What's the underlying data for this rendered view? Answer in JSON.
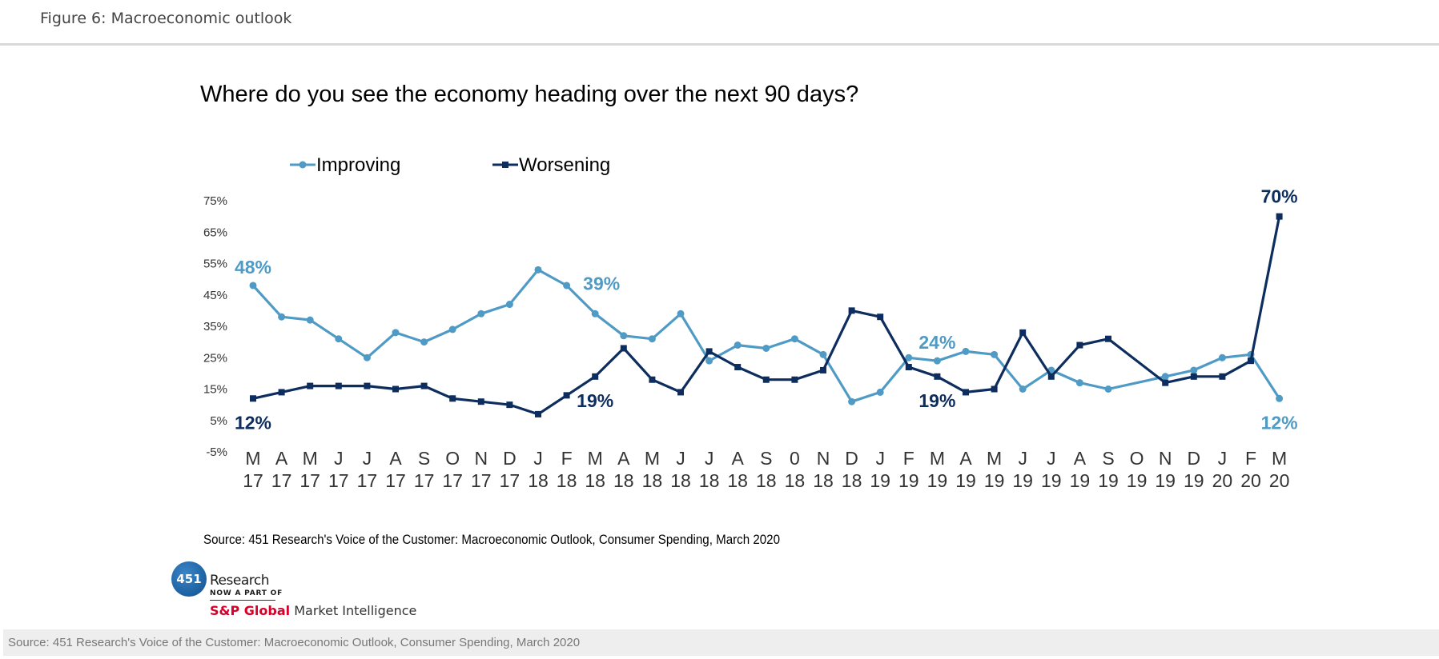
{
  "figure_title": "Figure 6: Macroeconomic outlook",
  "chart_data": {
    "type": "line",
    "title": "Where do you see the economy heading over the next 90 days?",
    "xlabel": "",
    "ylabel": "",
    "ylim": [
      -5,
      75
    ],
    "yticks": [
      "75%",
      "65%",
      "55%",
      "45%",
      "35%",
      "25%",
      "15%",
      "5%",
      "-5%"
    ],
    "ytick_values": [
      75,
      65,
      55,
      45,
      35,
      25,
      15,
      5,
      -5
    ],
    "grid": false,
    "legend_position": "top",
    "categories": [
      {
        "month": "M",
        "year": "17"
      },
      {
        "month": "A",
        "year": "17"
      },
      {
        "month": "M",
        "year": "17"
      },
      {
        "month": "J",
        "year": "17"
      },
      {
        "month": "J",
        "year": "17"
      },
      {
        "month": "A",
        "year": "17"
      },
      {
        "month": "S",
        "year": "17"
      },
      {
        "month": "O",
        "year": "17"
      },
      {
        "month": "N",
        "year": "17"
      },
      {
        "month": "D",
        "year": "17"
      },
      {
        "month": "J",
        "year": "18"
      },
      {
        "month": "F",
        "year": "18"
      },
      {
        "month": "M",
        "year": "18"
      },
      {
        "month": "A",
        "year": "18"
      },
      {
        "month": "M",
        "year": "18"
      },
      {
        "month": "J",
        "year": "18"
      },
      {
        "month": "J",
        "year": "18"
      },
      {
        "month": "A",
        "year": "18"
      },
      {
        "month": "S",
        "year": "18"
      },
      {
        "month": "0",
        "year": "18"
      },
      {
        "month": "N",
        "year": "18"
      },
      {
        "month": "D",
        "year": "18"
      },
      {
        "month": "J",
        "year": "19"
      },
      {
        "month": "F",
        "year": "19"
      },
      {
        "month": "M",
        "year": "19"
      },
      {
        "month": "A",
        "year": "19"
      },
      {
        "month": "M",
        "year": "19"
      },
      {
        "month": "J",
        "year": "19"
      },
      {
        "month": "J",
        "year": "19"
      },
      {
        "month": "A",
        "year": "19"
      },
      {
        "month": "S",
        "year": "19"
      },
      {
        "month": "O",
        "year": "19"
      },
      {
        "month": "N",
        "year": "19"
      },
      {
        "month": "D",
        "year": "19"
      },
      {
        "month": "J",
        "year": "20"
      },
      {
        "month": "F",
        "year": "20"
      },
      {
        "month": "M",
        "year": "20"
      }
    ],
    "series": [
      {
        "name": "Improving",
        "color": "#4f9bc6",
        "marker": "circle",
        "values": [
          48,
          38,
          37,
          31,
          25,
          33,
          30,
          34,
          39,
          42,
          53,
          48,
          39,
          32,
          31,
          39,
          24,
          29,
          28,
          31,
          26,
          11,
          14,
          25,
          24,
          27,
          26,
          15,
          21,
          17,
          15,
          null,
          19,
          21,
          25,
          26,
          12
        ]
      },
      {
        "name": "Worsening",
        "color": "#0d2d5e",
        "marker": "square",
        "values": [
          12,
          14,
          16,
          16,
          16,
          15,
          16,
          12,
          11,
          10,
          7,
          13,
          19,
          28,
          18,
          14,
          27,
          22,
          18,
          18,
          21,
          40,
          38,
          22,
          19,
          14,
          15,
          33,
          19,
          29,
          31,
          null,
          17,
          19,
          19,
          24,
          70
        ]
      }
    ],
    "annotations": [
      {
        "text": "48%",
        "series": "Improving",
        "index": 0,
        "placement": "above"
      },
      {
        "text": "39%",
        "series": "Improving",
        "index": 12,
        "placement": "above"
      },
      {
        "text": "24%",
        "series": "Improving",
        "index": 24,
        "placement": "above"
      },
      {
        "text": "12%",
        "series": "Improving",
        "index": 36,
        "placement": "below"
      },
      {
        "text": "12%",
        "series": "Worsening",
        "index": 0,
        "placement": "below"
      },
      {
        "text": "19%",
        "series": "Worsening",
        "index": 12,
        "placement": "below"
      },
      {
        "text": "19%",
        "series": "Worsening",
        "index": 24,
        "placement": "below"
      },
      {
        "text": "70%",
        "series": "Worsening",
        "index": 36,
        "placement": "above"
      }
    ],
    "source": "Source: 451 Research's Voice of the Customer: Macroeconomic Outlook, Consumer Spending, March 2020"
  },
  "logo": {
    "badge": "451",
    "research": "Research",
    "now_part_of": "NOW A PART OF",
    "sp_global": "S&P Global",
    "market_intelligence": "Market Intelligence"
  },
  "footer_text": "Source: 451 Research's Voice of the Customer: Macroeconomic Outlook, Consumer Spending, March 2020"
}
